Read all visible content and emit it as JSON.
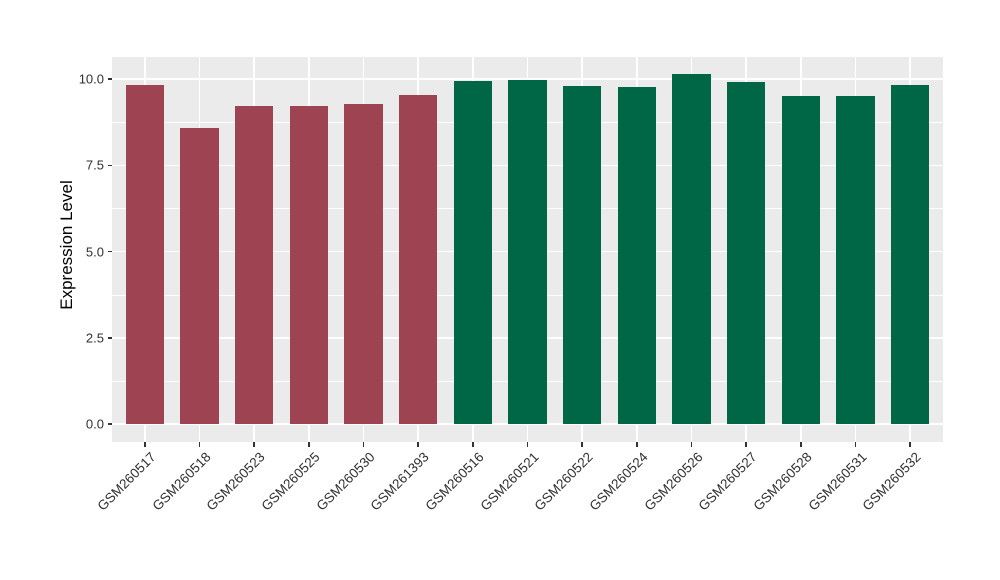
{
  "chart_data": {
    "type": "bar",
    "title": "",
    "xlabel": "",
    "ylabel": "Expression Level",
    "legend": "none",
    "grid": "horizontal major+minor white lines, vertical major white lines at category centers, on gray panel",
    "panel_background": "#EBEBEB",
    "gridline_color": "#FFFFFF",
    "axis_text_color": "#303030",
    "ylim": [
      -0.52,
      10.66
    ],
    "yticks": [
      {
        "value": 0,
        "label": "0.0"
      },
      {
        "value": 2.5,
        "label": "2.5"
      },
      {
        "value": 5,
        "label": "5.0"
      },
      {
        "value": 7.5,
        "label": "7.5"
      },
      {
        "value": 10,
        "label": "10.0"
      }
    ],
    "minor_yticks": [
      1.25,
      3.75,
      6.25,
      8.75
    ],
    "group_colors": {
      "group1": "#9D4351",
      "group2": "#006746"
    },
    "bar_width_fraction": 0.7,
    "bars": [
      {
        "label": "GSM260517",
        "value": 9.84,
        "group": "group1"
      },
      {
        "label": "GSM260518",
        "value": 8.57,
        "group": "group1"
      },
      {
        "label": "GSM260523",
        "value": 9.23,
        "group": "group1"
      },
      {
        "label": "GSM260525",
        "value": 9.22,
        "group": "group1"
      },
      {
        "label": "GSM260530",
        "value": 9.28,
        "group": "group1"
      },
      {
        "label": "GSM261393",
        "value": 9.54,
        "group": "group1"
      },
      {
        "label": "GSM260516",
        "value": 9.94,
        "group": "group2"
      },
      {
        "label": "GSM260521",
        "value": 9.96,
        "group": "group2"
      },
      {
        "label": "GSM260522",
        "value": 9.79,
        "group": "group2"
      },
      {
        "label": "GSM260524",
        "value": 9.76,
        "group": "group2"
      },
      {
        "label": "GSM260526",
        "value": 10.14,
        "group": "group2"
      },
      {
        "label": "GSM260527",
        "value": 9.92,
        "group": "group2"
      },
      {
        "label": "GSM260528",
        "value": 9.52,
        "group": "group2"
      },
      {
        "label": "GSM260531",
        "value": 9.51,
        "group": "group2"
      },
      {
        "label": "GSM260532",
        "value": 9.84,
        "group": "group2"
      }
    ]
  }
}
